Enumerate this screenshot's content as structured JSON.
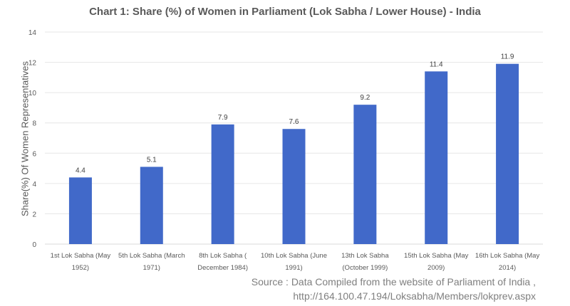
{
  "chart_data": {
    "type": "bar",
    "title": "Chart 1: Share (%) of Women in Parliament (Lok Sabha / Lower House) - India",
    "xlabel": "",
    "ylabel": "Share(%)  Of Women Representatives",
    "ylim": [
      0,
      14
    ],
    "yticks": [
      0,
      2,
      4,
      6,
      8,
      10,
      12,
      14
    ],
    "grid": true,
    "categories": [
      [
        "1st Lok Sabha (May",
        "1952)"
      ],
      [
        "5th Lok Sabha (March",
        "1971)"
      ],
      [
        "8th Lok Sabha (",
        "December 1984)"
      ],
      [
        "10th Lok Sabha (June",
        "1991)"
      ],
      [
        "13th Lok Sabha",
        "(October 1999)"
      ],
      [
        "15th Lok Sabha (May",
        "2009)"
      ],
      [
        "16th Lok Sabha (May",
        "2014)"
      ]
    ],
    "values": [
      4.4,
      5.1,
      7.9,
      7.6,
      9.2,
      11.4,
      11.9
    ],
    "data_labels": [
      "4.4",
      "5.1",
      "7.9",
      "7.6",
      "9.2",
      "11.4",
      "11.9"
    ],
    "bar_color": "#4169c9"
  },
  "source": {
    "line1": "Source : Data Compiled from the website of Parliament of India ,",
    "line2": "http://164.100.47.194/Loksabha/Members/lokprev.aspx"
  }
}
